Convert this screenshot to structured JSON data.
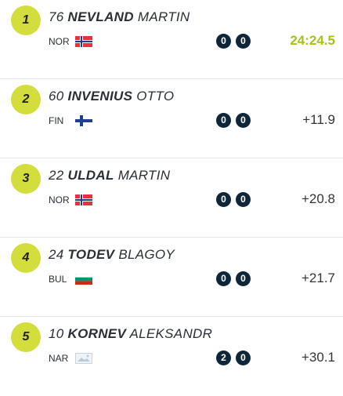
{
  "results": [
    {
      "rank": "1",
      "bib": "76",
      "last": "NEVLAND",
      "first": "MARTIN",
      "nation": "NOR",
      "shooting": [
        "0",
        "0"
      ],
      "time": "24:24.5"
    },
    {
      "rank": "2",
      "bib": "60",
      "last": "INVENIUS",
      "first": "OTTO",
      "nation": "FIN",
      "shooting": [
        "0",
        "0"
      ],
      "time": "+11.9"
    },
    {
      "rank": "3",
      "bib": "22",
      "last": "ULDAL",
      "first": "MARTIN",
      "nation": "NOR",
      "shooting": [
        "0",
        "0"
      ],
      "time": "+20.8"
    },
    {
      "rank": "4",
      "bib": "24",
      "last": "TODEV",
      "first": "BLAGOY",
      "nation": "BUL",
      "shooting": [
        "0",
        "0"
      ],
      "time": "+21.7"
    },
    {
      "rank": "5",
      "bib": "10",
      "last": "KORNEV",
      "first": "ALEKSANDR",
      "nation": "NAR",
      "shooting": [
        "2",
        "0"
      ],
      "time": "+30.1"
    }
  ]
}
